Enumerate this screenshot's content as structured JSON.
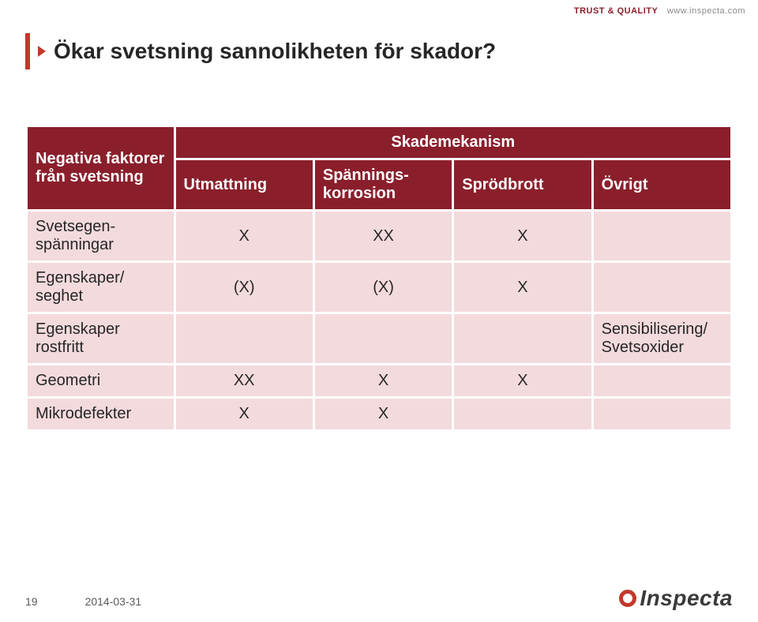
{
  "header": {
    "trust_quality": "TRUST & QUALITY",
    "url": "www.inspecta.com"
  },
  "title": "Ökar svetsning sannolikheten för skador?",
  "table": {
    "top_left": "Negativa faktorer från svetsning",
    "mechanism_header": "Skademekanism",
    "columns": [
      "Utmattning",
      "Spännings-\nkorrosion",
      "Sprödbrott",
      "Övrigt"
    ],
    "rows": [
      {
        "label": "Svetsegen-\nspänningar",
        "cells": [
          "X",
          "XX",
          "X",
          ""
        ]
      },
      {
        "label": "Egenskaper/ seghet",
        "cells": [
          "(X)",
          "(X)",
          "X",
          ""
        ]
      },
      {
        "label": "Egenskaper rostfritt",
        "cells": [
          "",
          "",
          "",
          "Sensibilisering/\nSvetsoxider"
        ]
      },
      {
        "label": "Geometri",
        "cells": [
          "XX",
          "X",
          "X",
          ""
        ]
      },
      {
        "label": "Mikrodefekter",
        "cells": [
          "X",
          "X",
          "",
          ""
        ]
      }
    ]
  },
  "footer": {
    "page": "19",
    "date": "2014-03-31",
    "brand": "Inspecta"
  },
  "colors": {
    "header_bg": "#8a1f2b",
    "row_bg": "#f3dadd",
    "accent": "#c0392b",
    "text": "#262626"
  }
}
